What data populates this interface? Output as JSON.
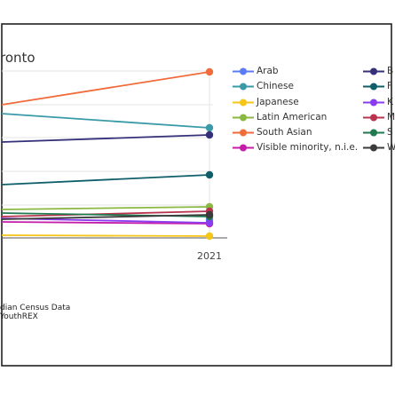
{
  "chart_data": {
    "type": "line",
    "title": "ronto",
    "x": [
      "2021"
    ],
    "series": [
      {
        "name": "Arab",
        "color": "#5B7BF5",
        "values": [
          null
        ]
      },
      {
        "name": "Chinese",
        "color": "#3A9AA8",
        "values": [
          null
        ]
      },
      {
        "name": "Japanese",
        "color": "#F5C518",
        "values": [
          null
        ]
      },
      {
        "name": "Latin American",
        "color": "#8BB842",
        "values": [
          null
        ]
      },
      {
        "name": "South Asian",
        "color": "#F26B3A",
        "values": [
          null
        ]
      },
      {
        "name": "Visible minority, n.i.e.",
        "color": "#C41DA8",
        "values": [
          null
        ]
      },
      {
        "name": "B",
        "color": "#35307A",
        "values": [
          null
        ]
      },
      {
        "name": "F",
        "color": "#0E5F6A",
        "values": [
          null
        ]
      },
      {
        "name": "K",
        "color": "#8A3CF0",
        "values": [
          null
        ]
      },
      {
        "name": "M",
        "color": "#B8334F",
        "values": [
          null
        ]
      },
      {
        "name": "S",
        "color": "#1F7A50",
        "values": [
          null
        ]
      },
      {
        "name": "W",
        "color": "#3B3B3B",
        "values": [
          null
        ]
      }
    ],
    "grid": true,
    "legend_position": "right"
  },
  "source_lines": [
    "dian Census Data",
    "YouthREX"
  ]
}
